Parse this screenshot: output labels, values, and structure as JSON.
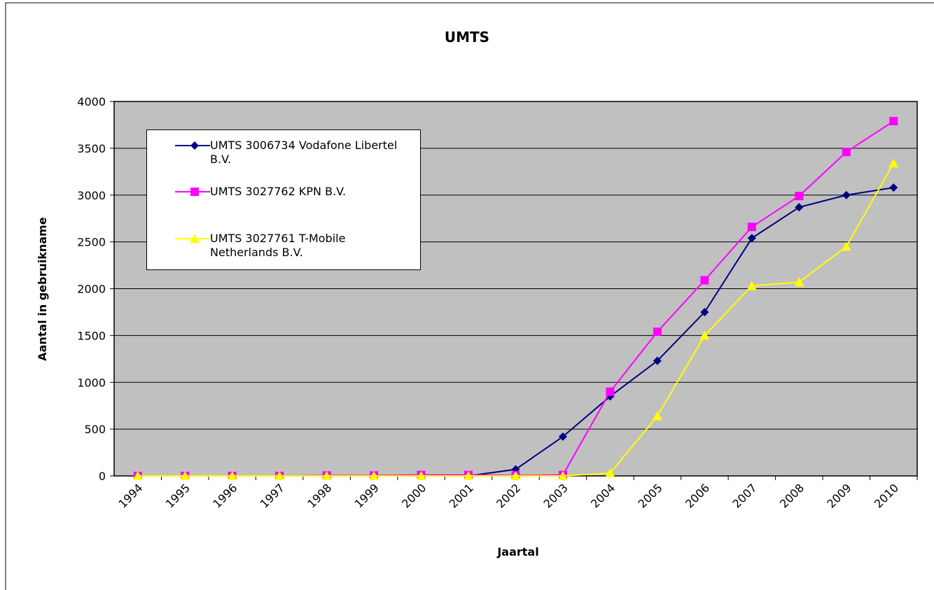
{
  "chart_data": {
    "type": "line",
    "title": "UMTS",
    "x_label": "Jaartal",
    "y_label": "Aantal in gebruikname",
    "categories": [
      "1994",
      "1995",
      "1996",
      "1997",
      "1998",
      "1999",
      "2000",
      "2001",
      "2002",
      "2003",
      "2004",
      "2005",
      "2006",
      "2007",
      "2008",
      "2009",
      "2010"
    ],
    "series": [
      {
        "name": "UMTS 3006734 Vodafone Libertel B.V.",
        "color": "#000080",
        "marker": "diamond",
        "values": [
          0,
          0,
          0,
          0,
          0,
          0,
          0,
          0,
          70,
          420,
          850,
          1230,
          1750,
          2540,
          2870,
          3000,
          3080
        ]
      },
      {
        "name": "UMTS 3027762 KPN B.V.",
        "color": "#ff00ff",
        "marker": "square",
        "values": [
          0,
          0,
          0,
          0,
          5,
          5,
          10,
          10,
          5,
          10,
          900,
          1540,
          2090,
          2660,
          2990,
          3460,
          3790
        ]
      },
      {
        "name": "UMTS 3027761 T-Mobile Netherlands B.V.",
        "color": "#ffff00",
        "marker": "triangle",
        "values": [
          0,
          0,
          0,
          0,
          0,
          0,
          0,
          0,
          0,
          0,
          30,
          640,
          1500,
          2030,
          2070,
          2450,
          3340
        ]
      }
    ],
    "ylim": [
      0,
      4000
    ],
    "yticks": [
      0,
      500,
      1000,
      1500,
      2000,
      2500,
      3000,
      3500,
      4000
    ],
    "grid": true,
    "legend": "top-left"
  }
}
